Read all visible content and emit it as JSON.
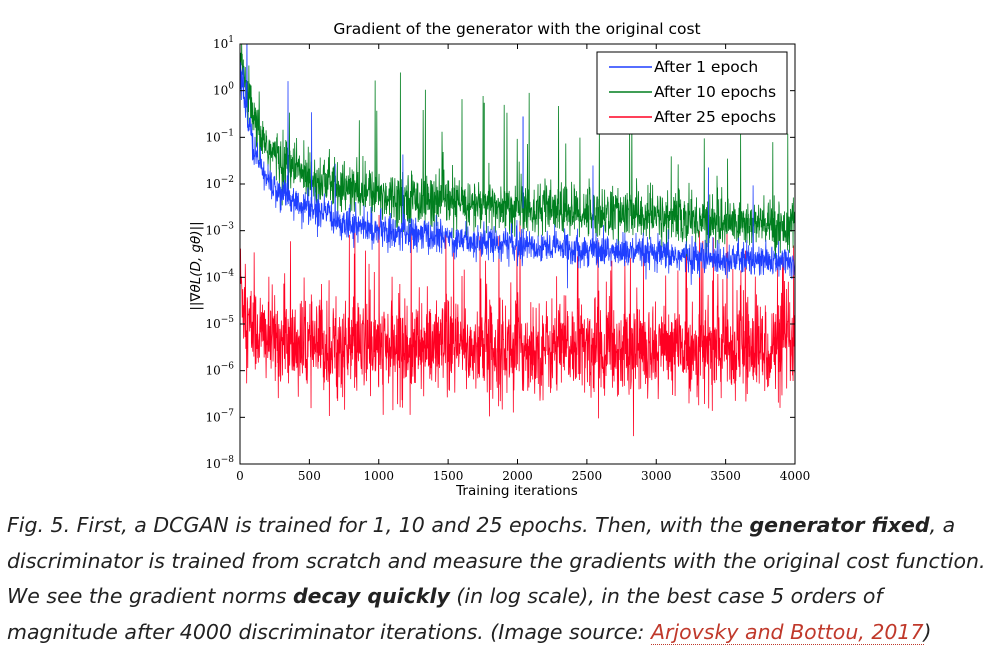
{
  "chart_data": {
    "type": "line",
    "title": "Gradient of the generator with the original cost",
    "xlabel": "Training iterations",
    "ylabel": "||∇θL(D, gθ)||",
    "xlim": [
      0,
      4000
    ],
    "ylim": [
      1e-08,
      10
    ],
    "yscale": "log",
    "xticks": [
      0,
      500,
      1000,
      1500,
      2000,
      2500,
      3000,
      3500,
      4000
    ],
    "yticks": [
      {
        "value": 10,
        "base": "10",
        "exp": "1"
      },
      {
        "value": 1,
        "base": "10",
        "exp": "0"
      },
      {
        "value": 0.1,
        "base": "10",
        "exp": "−1"
      },
      {
        "value": 0.01,
        "base": "10",
        "exp": "−2"
      },
      {
        "value": 0.001,
        "base": "10",
        "exp": "−3"
      },
      {
        "value": 0.0001,
        "base": "10",
        "exp": "−4"
      },
      {
        "value": 1e-05,
        "base": "10",
        "exp": "−5"
      },
      {
        "value": 1e-06,
        "base": "10",
        "exp": "−6"
      },
      {
        "value": 1e-07,
        "base": "10",
        "exp": "−7"
      },
      {
        "value": 1e-08,
        "base": "10",
        "exp": "−8"
      }
    ],
    "legend_position": "top-right",
    "grid": false,
    "series": [
      {
        "name": "After 1 epoch",
        "color": "#1f3fff",
        "x": [
          0,
          50,
          100,
          200,
          300,
          500,
          750,
          1000,
          1500,
          2000,
          2500,
          3000,
          3500,
          4000
        ],
        "y": [
          3.0,
          0.3,
          0.05,
          0.012,
          0.006,
          0.003,
          0.0015,
          0.001,
          0.0007,
          0.0005,
          0.0004,
          0.0003,
          0.00025,
          0.0002
        ]
      },
      {
        "name": "After 10 epochs",
        "color": "#007f1f",
        "x": [
          0,
          50,
          100,
          200,
          300,
          500,
          750,
          1000,
          1500,
          2000,
          2500,
          3000,
          3500,
          4000
        ],
        "y": [
          4.0,
          1.0,
          0.2,
          0.06,
          0.03,
          0.015,
          0.008,
          0.006,
          0.004,
          0.003,
          0.0025,
          0.002,
          0.0015,
          0.0012
        ]
      },
      {
        "name": "After 25 epochs",
        "color": "#ff0022",
        "x": [
          0,
          50,
          100,
          200,
          300,
          500,
          750,
          1000,
          1500,
          2000,
          2500,
          3000,
          3500,
          4000
        ],
        "y": [
          0.0001,
          1e-05,
          8e-06,
          5e-06,
          4e-06,
          3e-06,
          3e-06,
          3e-06,
          3e-06,
          3e-06,
          3e-06,
          3e-06,
          3e-06,
          3e-06
        ]
      }
    ],
    "annotations": {
      "blue_spike": {
        "x": 2040,
        "y": 0.28
      },
      "green_spike": {
        "x": 1760,
        "y": 0.55
      }
    }
  },
  "caption": {
    "prefix": "Fig. 5. First, a DCGAN is trained for 1, 10 and 25 epochs. Then, with the ",
    "bold1": "generator fixed",
    "mid1": ", a discriminator is trained from scratch and measure the gradients with the original cost function. We see the gradient norms ",
    "bold2": "decay quickly",
    "mid2": " (in log scale), in the best case 5 orders of magnitude after 4000 discriminator iterations. (Image source: ",
    "link": "Arjovsky and Bottou, 2017",
    "suffix": ")"
  }
}
